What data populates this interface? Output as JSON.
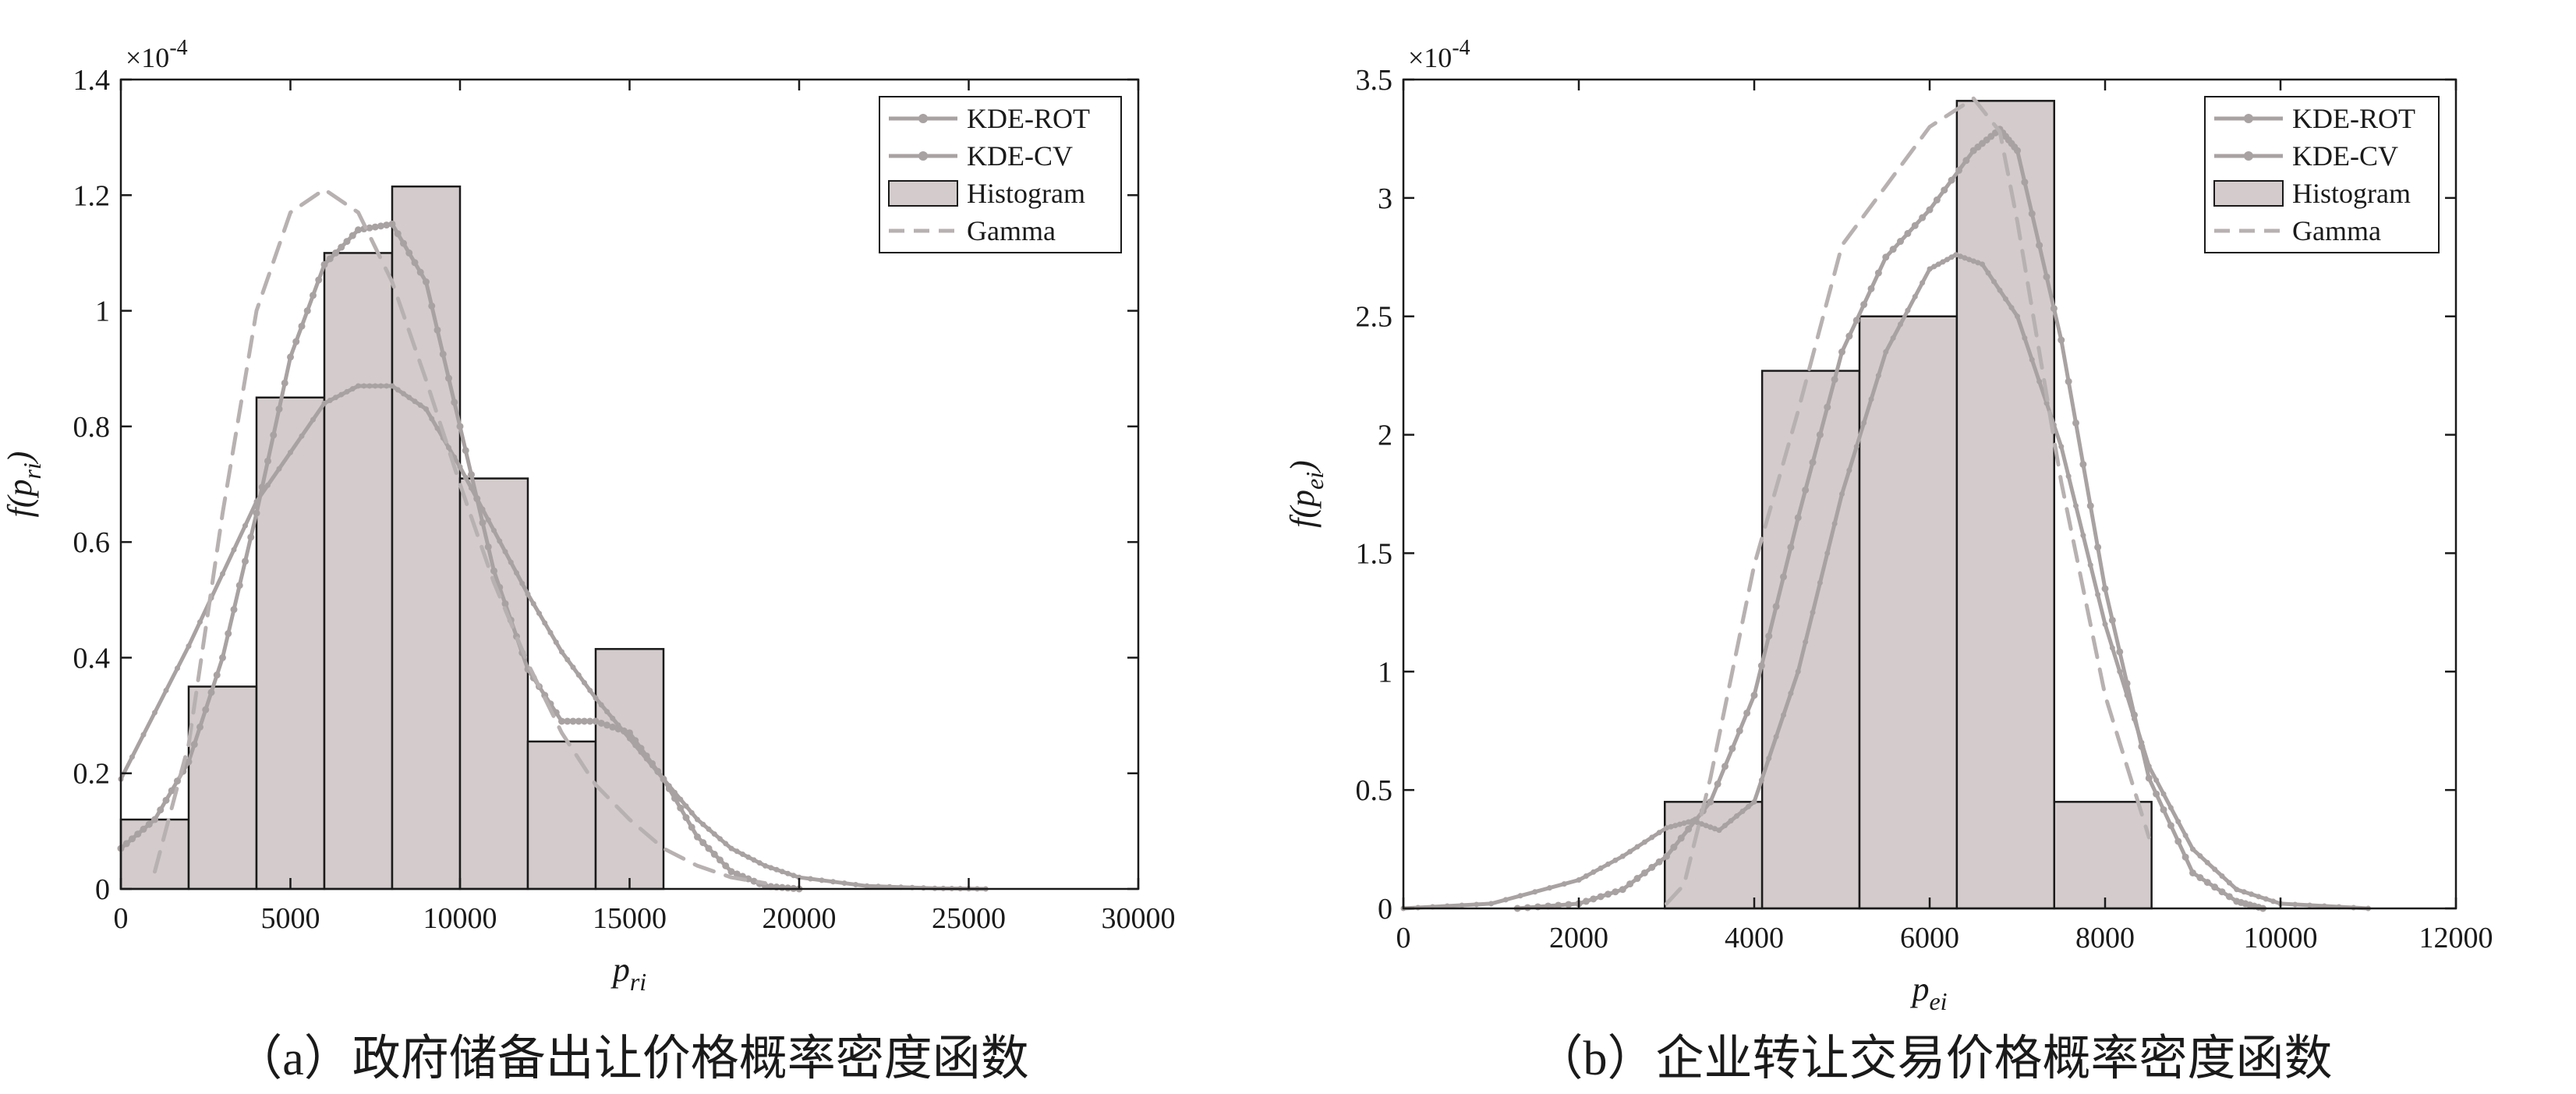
{
  "chart_data": [
    {
      "type": "bar",
      "caption": "（a）政府储备出让价格概率密度函数",
      "xlabel_base": "p",
      "xlabel_sub": "ri",
      "ylabel_func": "f(p",
      "ylabel_sub": "ri",
      "ylabel_close": ")",
      "y_exponent_base": "×10",
      "y_exponent_power": "-4",
      "xlim": [
        0,
        30000
      ],
      "ylim": [
        0,
        1.4
      ],
      "x_ticks": [
        0,
        5000,
        10000,
        15000,
        20000,
        25000,
        30000
      ],
      "x_tick_labels": [
        "0",
        "5000",
        "10000",
        "15000",
        "20000",
        "25000",
        "30000"
      ],
      "y_ticks": [
        0,
        0.2,
        0.4,
        0.6,
        0.8,
        1,
        1.2,
        1.4
      ],
      "y_tick_labels": [
        "0",
        "0.2",
        "0.4",
        "0.6",
        "0.8",
        "1",
        "1.2",
        "1.4"
      ],
      "legend": {
        "position": "top-right",
        "entries": [
          {
            "label": "KDE-ROT",
            "style": "line-dot"
          },
          {
            "label": "KDE-CV",
            "style": "line-dot"
          },
          {
            "label": "Histogram",
            "style": "patch"
          },
          {
            "label": "Gamma",
            "style": "dashed"
          }
        ]
      },
      "histogram": {
        "bin_edges": [
          0,
          2000,
          4000,
          6000,
          8000,
          10000,
          12000,
          14000,
          16000
        ],
        "values": [
          0.12,
          0.35,
          0.85,
          1.1,
          1.215,
          0.71,
          0.255,
          0.415
        ]
      },
      "series": [
        {
          "name": "KDE-ROT",
          "x": [
            0,
            1000,
            2000,
            3000,
            4000,
            5000,
            6000,
            7000,
            8000,
            9000,
            10000,
            11000,
            12000,
            13000,
            14000,
            15000,
            16000,
            17000,
            18000,
            19000,
            20000
          ],
          "y": [
            0.07,
            0.12,
            0.22,
            0.4,
            0.65,
            0.92,
            1.08,
            1.14,
            1.15,
            1.05,
            0.8,
            0.55,
            0.38,
            0.29,
            0.29,
            0.27,
            0.19,
            0.09,
            0.03,
            0.005,
            0
          ]
        },
        {
          "name": "KDE-CV",
          "x": [
            0,
            2000,
            4000,
            6000,
            7000,
            8000,
            9000,
            10000,
            11000,
            12000,
            13000,
            14000,
            15000,
            16000,
            17000,
            18000,
            19000,
            20000,
            22000,
            24000,
            25500
          ],
          "y": [
            0.19,
            0.42,
            0.67,
            0.84,
            0.87,
            0.87,
            0.83,
            0.73,
            0.62,
            0.51,
            0.41,
            0.33,
            0.26,
            0.19,
            0.12,
            0.07,
            0.04,
            0.02,
            0.005,
            0.001,
            0
          ]
        },
        {
          "name": "Gamma",
          "x": [
            1000,
            2000,
            3000,
            4000,
            5000,
            6000,
            7000,
            8000,
            9000,
            10000,
            11000,
            12000,
            13000,
            14000,
            15000,
            16000,
            17000,
            18000,
            19000
          ],
          "y": [
            0.03,
            0.25,
            0.65,
            1.0,
            1.17,
            1.21,
            1.17,
            1.05,
            0.88,
            0.7,
            0.53,
            0.39,
            0.27,
            0.18,
            0.12,
            0.07,
            0.04,
            0.02,
            0.01
          ]
        }
      ]
    },
    {
      "type": "bar",
      "caption": "（b）企业转让交易价格概率密度函数",
      "xlabel_base": "p",
      "xlabel_sub": "ei",
      "ylabel_func": "f(p",
      "ylabel_sub": "ei",
      "ylabel_close": ")",
      "y_exponent_base": "×10",
      "y_exponent_power": "-4",
      "xlim": [
        0,
        12000
      ],
      "ylim": [
        0,
        3.5
      ],
      "x_ticks": [
        0,
        2000,
        4000,
        6000,
        8000,
        10000,
        12000
      ],
      "x_tick_labels": [
        "0",
        "2000",
        "4000",
        "6000",
        "8000",
        "10000",
        "12000"
      ],
      "y_ticks": [
        0,
        0.5,
        1,
        1.5,
        2,
        2.5,
        3,
        3.5
      ],
      "y_tick_labels": [
        "0",
        "0.5",
        "1",
        "1.5",
        "2",
        "2.5",
        "3",
        "3.5"
      ],
      "legend": {
        "position": "top-right",
        "entries": [
          {
            "label": "KDE-ROT",
            "style": "line-dot"
          },
          {
            "label": "KDE-CV",
            "style": "line-dot"
          },
          {
            "label": "Histogram",
            "style": "patch"
          },
          {
            "label": "Gamma",
            "style": "dashed"
          }
        ]
      },
      "histogram": {
        "bin_edges": [
          2980,
          4090,
          5200,
          6310,
          7420,
          8530
        ],
        "values": [
          0.45,
          2.27,
          2.5,
          3.41,
          0.45
        ]
      },
      "series": [
        {
          "name": "KDE-ROT",
          "x": [
            1300,
            2000,
            2500,
            3000,
            3500,
            4000,
            4500,
            5000,
            5500,
            6000,
            6500,
            6800,
            7000,
            7500,
            8000,
            8500,
            9000,
            9500,
            9800
          ],
          "y": [
            0,
            0.02,
            0.08,
            0.22,
            0.45,
            0.9,
            1.65,
            2.35,
            2.75,
            2.95,
            3.2,
            3.29,
            3.2,
            2.4,
            1.35,
            0.55,
            0.15,
            0.03,
            0
          ]
        },
        {
          "name": "KDE-CV",
          "x": [
            0,
            1000,
            2000,
            2500,
            3000,
            3300,
            3600,
            4000,
            4500,
            5000,
            5500,
            6000,
            6300,
            6600,
            7000,
            7500,
            8000,
            8500,
            9000,
            9500,
            10000,
            11000
          ],
          "y": [
            0,
            0.02,
            0.12,
            0.22,
            0.34,
            0.37,
            0.33,
            0.45,
            1.0,
            1.75,
            2.35,
            2.7,
            2.76,
            2.72,
            2.5,
            1.95,
            1.2,
            0.6,
            0.25,
            0.08,
            0.02,
            0
          ]
        },
        {
          "name": "Gamma",
          "x": [
            3000,
            3200,
            3500,
            4000,
            4500,
            5000,
            5500,
            6000,
            6500,
            6800,
            7000,
            7500,
            8000,
            8500
          ],
          "y": [
            0.02,
            0.1,
            0.55,
            1.45,
            2.1,
            2.8,
            3.05,
            3.3,
            3.42,
            3.28,
            2.9,
            1.8,
            0.9,
            0.3
          ]
        }
      ]
    }
  ]
}
